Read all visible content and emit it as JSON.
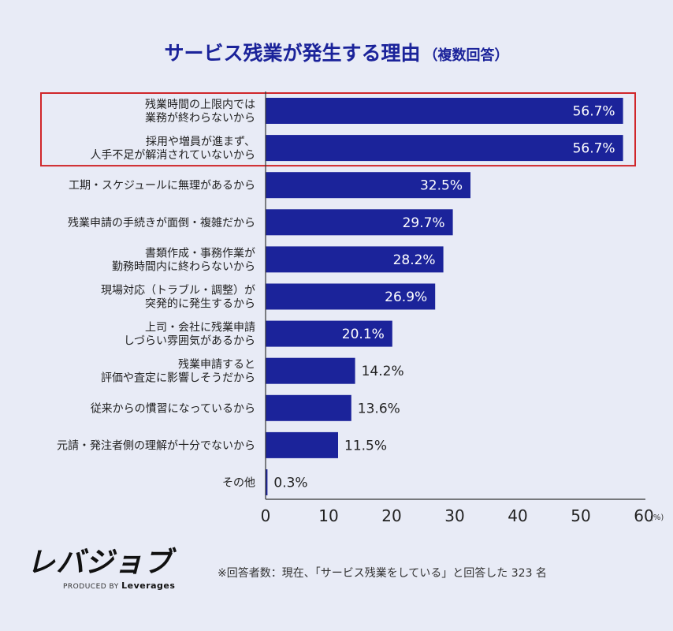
{
  "title": {
    "main": "サービス残業が発生する理由",
    "sub": "（複数回答）"
  },
  "colors": {
    "bar": "#1b239a",
    "highlight_border": "#d0262a",
    "background": "#e8ebf6"
  },
  "chart_data": {
    "type": "bar",
    "orientation": "horizontal",
    "categories": [
      [
        "残業時間の上限内では",
        "業務が終わらないから"
      ],
      [
        "採用や増員が進まず、",
        "人手不足が解消されていないから"
      ],
      [
        "工期・スケジュールに無理があるから"
      ],
      [
        "残業申請の手続きが面倒・複雑だから"
      ],
      [
        "書類作成・事務作業が",
        "勤務時間内に終わらないから"
      ],
      [
        "現場対応（トラブル・調整）が",
        "突発的に発生するから"
      ],
      [
        "上司・会社に残業申請",
        "しづらい雰囲気があるから"
      ],
      [
        "残業申請すると",
        "評価や査定に影響しそうだから"
      ],
      [
        "従来からの慣習になっているから"
      ],
      [
        "元請・発注者側の理解が十分でないから"
      ],
      [
        "その他"
      ]
    ],
    "values": [
      56.7,
      56.7,
      32.5,
      29.7,
      28.2,
      26.9,
      20.1,
      14.2,
      13.6,
      11.5,
      0.3
    ],
    "value_labels": [
      "56.7%",
      "56.7%",
      "32.5%",
      "29.7%",
      "28.2%",
      "26.9%",
      "20.1%",
      "14.2%",
      "13.6%",
      "11.5%",
      "0.3%"
    ],
    "highlighted": [
      0,
      1
    ],
    "xlim": [
      0,
      60
    ],
    "xticks": [
      "0",
      "10",
      "20",
      "30",
      "40",
      "50",
      "60"
    ],
    "xunit": "(%)",
    "grid": false,
    "legend": "none"
  },
  "brand": {
    "logo": "レバジョブ",
    "produced_by": "PRODUCED BY",
    "company": "Leverages"
  },
  "footnote": "※回答者数：現在、「サービス残業をしている」と回答した 323 名"
}
